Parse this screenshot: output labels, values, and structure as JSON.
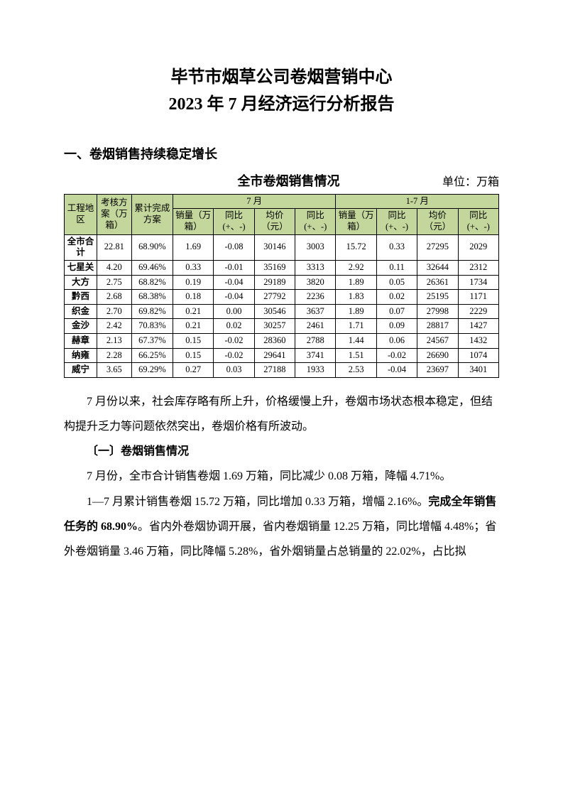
{
  "title_line1": "毕节市烟草公司卷烟营销中心",
  "title_line2": "2023 年 7 月经济运行分析报告",
  "section1_heading": "一、卷烟销售持续稳定增长",
  "table": {
    "title": "全市卷烟销售情况",
    "unit": "单位：万箱",
    "header_bg": "#c3d69b",
    "border_color": "#000000",
    "header1": {
      "region": "工程地区",
      "plan": "考核方案（万箱）",
      "completion": "累计完成方案",
      "month": "7 月",
      "ytd": "1-7 月"
    },
    "header2": {
      "sales": "销量（万箱）",
      "yoy": "同比 (+、-)",
      "price": "均价（元）",
      "price_yoy": "同比 (+、-)",
      "sales2": "销量（万箱）",
      "yoy2": "同比 (+、-)",
      "price2": "均价（元）",
      "price_yoy2": "同比 (+、-)"
    },
    "rows": [
      {
        "region": "全市合计",
        "plan": "22.81",
        "comp": "68.90%",
        "m_sales": "1.69",
        "m_yoy": "-0.08",
        "m_price": "30146",
        "m_pyoy": "3003",
        "y_sales": "15.72",
        "y_yoy": "0.33",
        "y_price": "27295",
        "y_pyoy": "2029"
      },
      {
        "region": "七星关",
        "plan": "4.20",
        "comp": "69.46%",
        "m_sales": "0.33",
        "m_yoy": "-0.01",
        "m_price": "35169",
        "m_pyoy": "3313",
        "y_sales": "2.92",
        "y_yoy": "0.11",
        "y_price": "32644",
        "y_pyoy": "2312"
      },
      {
        "region": "大方",
        "plan": "2.75",
        "comp": "68.82%",
        "m_sales": "0.19",
        "m_yoy": "-0.04",
        "m_price": "29189",
        "m_pyoy": "3820",
        "y_sales": "1.89",
        "y_yoy": "0.05",
        "y_price": "26361",
        "y_pyoy": "1734"
      },
      {
        "region": "黔西",
        "plan": "2.68",
        "comp": "68.38%",
        "m_sales": "0.18",
        "m_yoy": "-0.04",
        "m_price": "27792",
        "m_pyoy": "2236",
        "y_sales": "1.83",
        "y_yoy": "0.02",
        "y_price": "25195",
        "y_pyoy": "1171"
      },
      {
        "region": "织金",
        "plan": "2.70",
        "comp": "69.82%",
        "m_sales": "0.21",
        "m_yoy": "0.00",
        "m_price": "30546",
        "m_pyoy": "3637",
        "y_sales": "1.89",
        "y_yoy": "0.07",
        "y_price": "27998",
        "y_pyoy": "2229"
      },
      {
        "region": "金沙",
        "plan": "2.42",
        "comp": "70.83%",
        "m_sales": "0.21",
        "m_yoy": "0.02",
        "m_price": "30257",
        "m_pyoy": "2461",
        "y_sales": "1.71",
        "y_yoy": "0.09",
        "y_price": "28817",
        "y_pyoy": "1427"
      },
      {
        "region": "赫章",
        "plan": "2.13",
        "comp": "67.37%",
        "m_sales": "0.15",
        "m_yoy": "-0.02",
        "m_price": "28360",
        "m_pyoy": "2788",
        "y_sales": "1.44",
        "y_yoy": "0.06",
        "y_price": "24567",
        "y_pyoy": "1432"
      },
      {
        "region": "纳雍",
        "plan": "2.28",
        "comp": "66.25%",
        "m_sales": "0.15",
        "m_yoy": "-0.02",
        "m_price": "29641",
        "m_pyoy": "3741",
        "y_sales": "1.51",
        "y_yoy": "-0.02",
        "y_price": "26690",
        "y_pyoy": "1074"
      },
      {
        "region": "威宁",
        "plan": "3.65",
        "comp": "69.29%",
        "m_sales": "0.27",
        "m_yoy": "0.03",
        "m_price": "27188",
        "m_pyoy": "1933",
        "y_sales": "2.53",
        "y_yoy": "-0.04",
        "y_price": "23697",
        "y_pyoy": "3401"
      }
    ]
  },
  "para1": "7 月份以来，社会库存略有所上升，价格缓慢上升，卷烟市场状态根本稳定，但结构提升乏力等问题依然突出，卷烟价格有所波动。",
  "sub1_heading": "〔一〕卷烟销售情况",
  "para2": "7 月份，全市合计销售卷烟 1.69 万箱，同比减少 0.08 万箱，降幅 4.71%。",
  "para3a": "1—7 月累计销售卷烟 15.72 万箱，同比增加 0.33 万箱，增幅 2.16%。",
  "para3_bold": "完成全年销售任务的 68.90%",
  "para3b": "。省内外卷烟协调开展，省内卷烟销量 12.25 万箱，同比增幅 4.48%；省外卷烟销量 3.46 万箱，同比降幅 5.28%，省外烟销量占总销量的 22.02%，占比拟"
}
